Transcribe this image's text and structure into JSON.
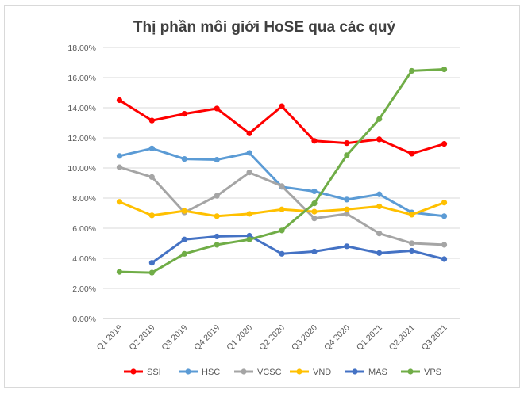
{
  "chart_data": {
    "type": "line",
    "title": "Thị phần môi giới HoSE qua các quý",
    "xlabel": "",
    "ylabel": "",
    "ylim": [
      0,
      18
    ],
    "y_tick_step": 2,
    "y_format": "percent_2dp",
    "grid": "horizontal",
    "legend_position": "bottom",
    "categories": [
      "Q1 2019",
      "Q2 2019",
      "Q3 2019",
      "Q4 2019",
      "Q1 2020",
      "Q2 2020",
      "Q3 2020",
      "Q4 2020",
      "Q1.2021",
      "Q2.2021",
      "Q3.2021"
    ],
    "y_tick_labels": [
      "0.00%",
      "2.00%",
      "4.00%",
      "6.00%",
      "8.00%",
      "10.00%",
      "12.00%",
      "14.00%",
      "16.00%",
      "18.00%"
    ],
    "series": [
      {
        "name": "SSI",
        "color": "#ff0000",
        "values": [
          14.5,
          13.15,
          13.6,
          13.95,
          12.3,
          14.1,
          11.8,
          11.65,
          11.9,
          10.95,
          11.6
        ]
      },
      {
        "name": "HSC",
        "color": "#5b9bd5",
        "values": [
          10.8,
          11.3,
          10.6,
          10.55,
          11.0,
          8.75,
          8.45,
          7.9,
          8.25,
          7.05,
          6.8
        ]
      },
      {
        "name": "VCSC",
        "color": "#a5a5a5",
        "values": [
          10.05,
          9.4,
          7.05,
          8.15,
          9.7,
          8.8,
          6.65,
          6.95,
          5.65,
          5.0,
          4.9
        ]
      },
      {
        "name": "VND",
        "color": "#ffc000",
        "values": [
          7.75,
          6.85,
          7.15,
          6.8,
          6.95,
          7.25,
          7.1,
          7.25,
          7.45,
          6.9,
          7.7
        ]
      },
      {
        "name": "MAS",
        "color": "#4472c4",
        "values": [
          null,
          3.7,
          5.25,
          5.45,
          5.5,
          4.3,
          4.45,
          4.8,
          4.35,
          4.5,
          3.95
        ]
      },
      {
        "name": "VPS",
        "color": "#70ad47",
        "values": [
          3.1,
          3.05,
          4.3,
          4.9,
          5.25,
          5.85,
          7.65,
          10.85,
          13.25,
          16.45,
          16.55
        ]
      }
    ]
  }
}
